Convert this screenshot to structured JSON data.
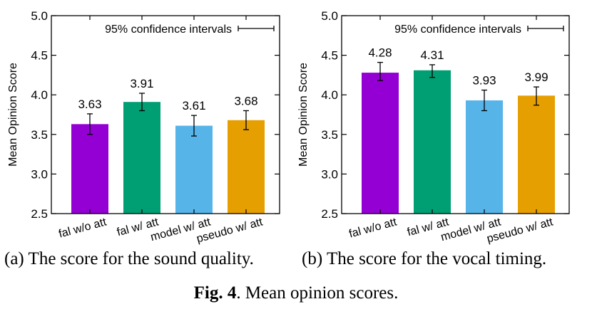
{
  "chart_data": [
    {
      "type": "bar",
      "ylabel": "Mean Opinion Score",
      "ylim": [
        2.5,
        5.0
      ],
      "yticks": [
        "2.5",
        "3.0",
        "3.5",
        "4.0",
        "4.5",
        "5.0"
      ],
      "categories": [
        "fal w/o att",
        "fal w/ att",
        "model w/ att",
        "pseudo w/ att"
      ],
      "values": [
        3.63,
        3.91,
        3.61,
        3.68
      ],
      "value_labels": [
        "3.63",
        "3.91",
        "3.61",
        "3.68"
      ],
      "error_low": [
        3.5,
        3.8,
        3.48,
        3.56
      ],
      "error_high": [
        3.76,
        4.02,
        3.74,
        3.8
      ],
      "colors": [
        "#9400d3",
        "#009e73",
        "#56b4e9",
        "#e69f00"
      ],
      "legend": {
        "text": "95% confidence intervals",
        "position": "top-right"
      },
      "grid": false
    },
    {
      "type": "bar",
      "ylabel": "Mean Opinion Score",
      "ylim": [
        2.5,
        5.0
      ],
      "yticks": [
        "2.5",
        "3.0",
        "3.5",
        "4.0",
        "4.5",
        "5.0"
      ],
      "categories": [
        "fal w/o att",
        "fal w/ att",
        "model w/ att",
        "pseudo w/ att"
      ],
      "values": [
        4.28,
        4.31,
        3.93,
        3.99
      ],
      "value_labels": [
        "4.28",
        "4.31",
        "3.93",
        "3.99"
      ],
      "error_low": [
        4.18,
        4.22,
        3.8,
        3.87
      ],
      "error_high": [
        4.41,
        4.38,
        4.06,
        4.1
      ],
      "colors": [
        "#9400d3",
        "#009e73",
        "#56b4e9",
        "#e69f00"
      ],
      "legend": {
        "text": "95% confidence intervals",
        "position": "top-right"
      },
      "grid": false
    }
  ],
  "captions": {
    "a": "(a) The score for the sound quality.",
    "b": "(b) The score for the vocal timing.",
    "fig_label": "Fig. 4",
    "fig_text": ". Mean opinion scores."
  }
}
